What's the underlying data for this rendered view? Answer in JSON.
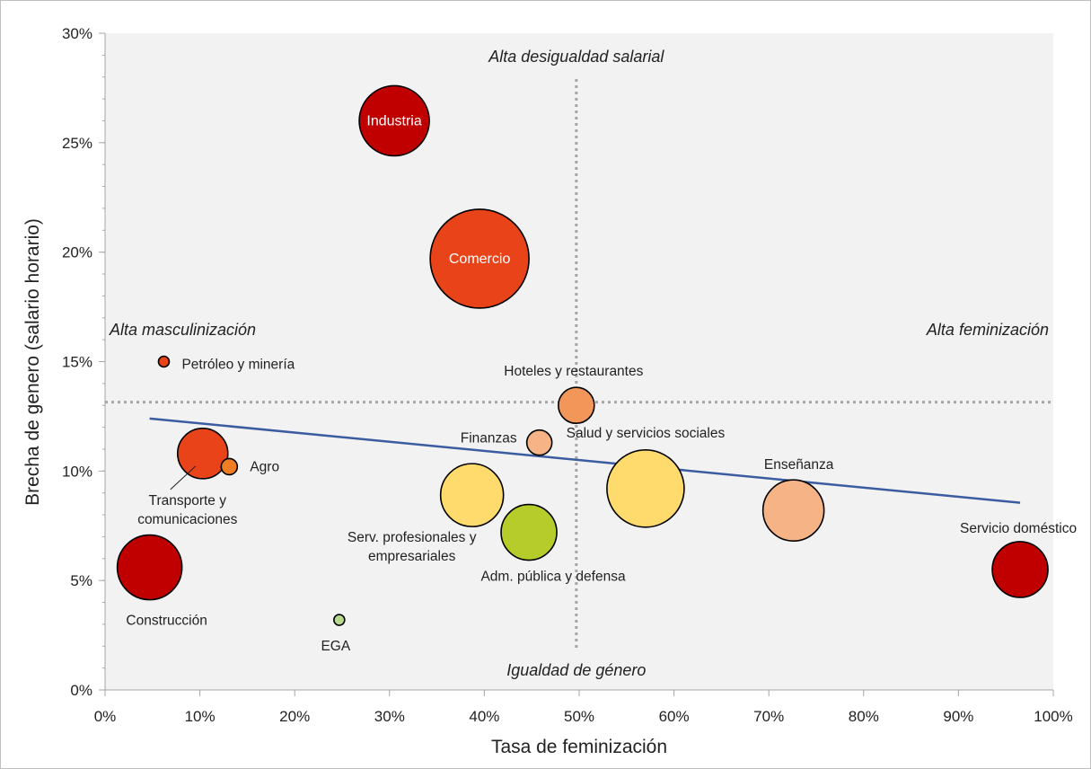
{
  "chart_data": {
    "type": "scatter",
    "xlabel": "Tasa de feminización",
    "ylabel": "Brecha de genero (salario horario)",
    "xlim": [
      0,
      1
    ],
    "ylim": [
      0,
      0.3
    ],
    "x_ticks": [
      "0%",
      "10%",
      "20%",
      "30%",
      "40%",
      "50%",
      "60%",
      "70%",
      "80%",
      "90%",
      "100%"
    ],
    "y_ticks": [
      "0%",
      "5%",
      "10%",
      "15%",
      "20%",
      "25%",
      "30%"
    ],
    "grid": false,
    "quadrant_labels": {
      "top": "Alta desigualdad salarial",
      "bottom": "Igualdad de género",
      "left": "Alta masculinización",
      "right": "Alta feminización"
    },
    "reference_lines": {
      "x": 0.497,
      "y": 0.1315
    },
    "trendline": {
      "x": [
        0.047,
        0.965
      ],
      "y": [
        0.124,
        0.0855
      ],
      "color": "#3b5ca0"
    },
    "points": [
      {
        "label": "Industria",
        "x": 0.305,
        "y": 0.26,
        "size": 39,
        "color": "#c00000",
        "label_inside": true
      },
      {
        "label": "Comercio",
        "x": 0.395,
        "y": 0.197,
        "size": 55,
        "color": "#e9431a",
        "label_inside": true
      },
      {
        "label": "Petróleo y minería",
        "x": 0.062,
        "y": 0.15,
        "size": 6,
        "color": "#e9431a"
      },
      {
        "label": "Hoteles y restaurantes",
        "x": 0.497,
        "y": 0.13,
        "size": 20,
        "color": "#f29659"
      },
      {
        "label": "Finanzas",
        "x": 0.458,
        "y": 0.113,
        "size": 14,
        "color": "#f5b386"
      },
      {
        "label": "Salud y servicios sociales",
        "x": 0.57,
        "y": 0.092,
        "size": 43,
        "color": "#ffdb6e"
      },
      {
        "label": "Enseñanza",
        "x": 0.726,
        "y": 0.082,
        "size": 34,
        "color": "#f5b386"
      },
      {
        "label": "Transporte y comunicaciones",
        "x": 0.103,
        "y": 0.108,
        "size": 28,
        "color": "#e9431a"
      },
      {
        "label": "Agro",
        "x": 0.131,
        "y": 0.102,
        "size": 9,
        "color": "#ef7d24"
      },
      {
        "label": "Serv. profesionales y empresariales",
        "x": 0.387,
        "y": 0.089,
        "size": 35,
        "color": "#ffdb6e"
      },
      {
        "label": "Adm. pública y defensa",
        "x": 0.447,
        "y": 0.072,
        "size": 31,
        "color": "#b5cc2a"
      },
      {
        "label": "Construcción",
        "x": 0.047,
        "y": 0.056,
        "size": 36,
        "color": "#c00000"
      },
      {
        "label": "EGA",
        "x": 0.247,
        "y": 0.032,
        "size": 6,
        "color": "#b6d98b"
      },
      {
        "label": "Servicio doméstico",
        "x": 0.965,
        "y": 0.055,
        "size": 31,
        "color": "#c00000"
      }
    ]
  }
}
